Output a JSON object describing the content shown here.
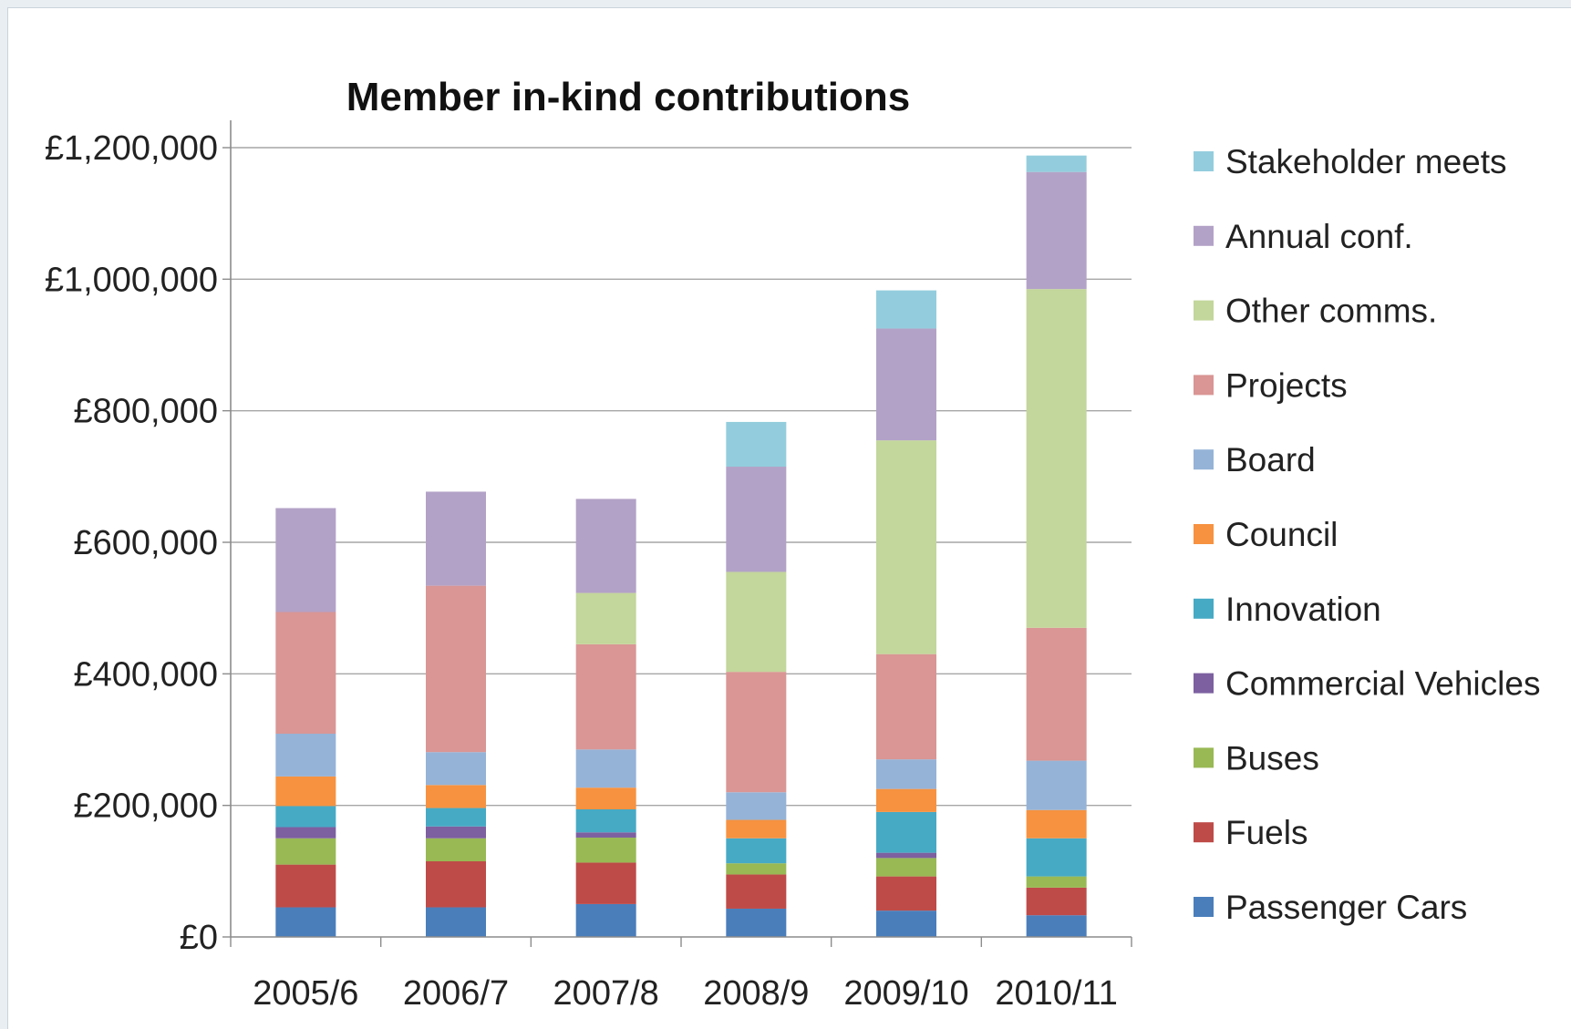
{
  "chart_data": {
    "type": "bar",
    "stacked": true,
    "title": "Member in-kind contributions",
    "xlabel": "",
    "ylabel": "",
    "ylim": [
      0,
      1200000
    ],
    "yticks": [
      0,
      200000,
      400000,
      600000,
      800000,
      1000000,
      1200000
    ],
    "ytick_labels": [
      "£0",
      "£200,000",
      "£400,000",
      "£600,000",
      "£800,000",
      "£1,000,000",
      "£1,200,000"
    ],
    "grid": "horizontal",
    "legend_position": "right",
    "categories": [
      "2005/6",
      "2006/7",
      "2007/8",
      "2008/9",
      "2009/10",
      "2010/11"
    ],
    "series": [
      {
        "name": "Passenger Cars",
        "color": "#4a7ebb",
        "values": [
          45000,
          45000,
          50000,
          43000,
          40000,
          33000
        ]
      },
      {
        "name": "Fuels",
        "color": "#be4b48",
        "values": [
          65000,
          70000,
          63000,
          52000,
          52000,
          42000
        ]
      },
      {
        "name": "Buses",
        "color": "#98b954",
        "values": [
          40000,
          35000,
          38000,
          17000,
          28000,
          17000
        ]
      },
      {
        "name": "Commercial Vehicles",
        "color": "#7d60a0",
        "values": [
          17000,
          18000,
          8000,
          0,
          8000,
          0
        ]
      },
      {
        "name": "Innovation",
        "color": "#46aac5",
        "values": [
          32000,
          28000,
          35000,
          38000,
          62000,
          58000
        ]
      },
      {
        "name": "Council",
        "color": "#f69240",
        "values": [
          45000,
          35000,
          33000,
          28000,
          35000,
          43000
        ]
      },
      {
        "name": "Board",
        "color": "#95b3d7",
        "values": [
          65000,
          50000,
          58000,
          42000,
          45000,
          75000
        ]
      },
      {
        "name": "Projects",
        "color": "#d99694",
        "values": [
          185000,
          253000,
          160000,
          183000,
          160000,
          202000
        ]
      },
      {
        "name": "Other comms.",
        "color": "#c3d69b",
        "values": [
          0,
          0,
          78000,
          152000,
          325000,
          515000
        ]
      },
      {
        "name": "Annual conf.",
        "color": "#b3a2c7",
        "values": [
          158000,
          143000,
          143000,
          160000,
          170000,
          178000
        ]
      },
      {
        "name": "Stakeholder meets",
        "color": "#93cddd",
        "values": [
          0,
          0,
          0,
          68000,
          58000,
          25000
        ]
      }
    ]
  }
}
